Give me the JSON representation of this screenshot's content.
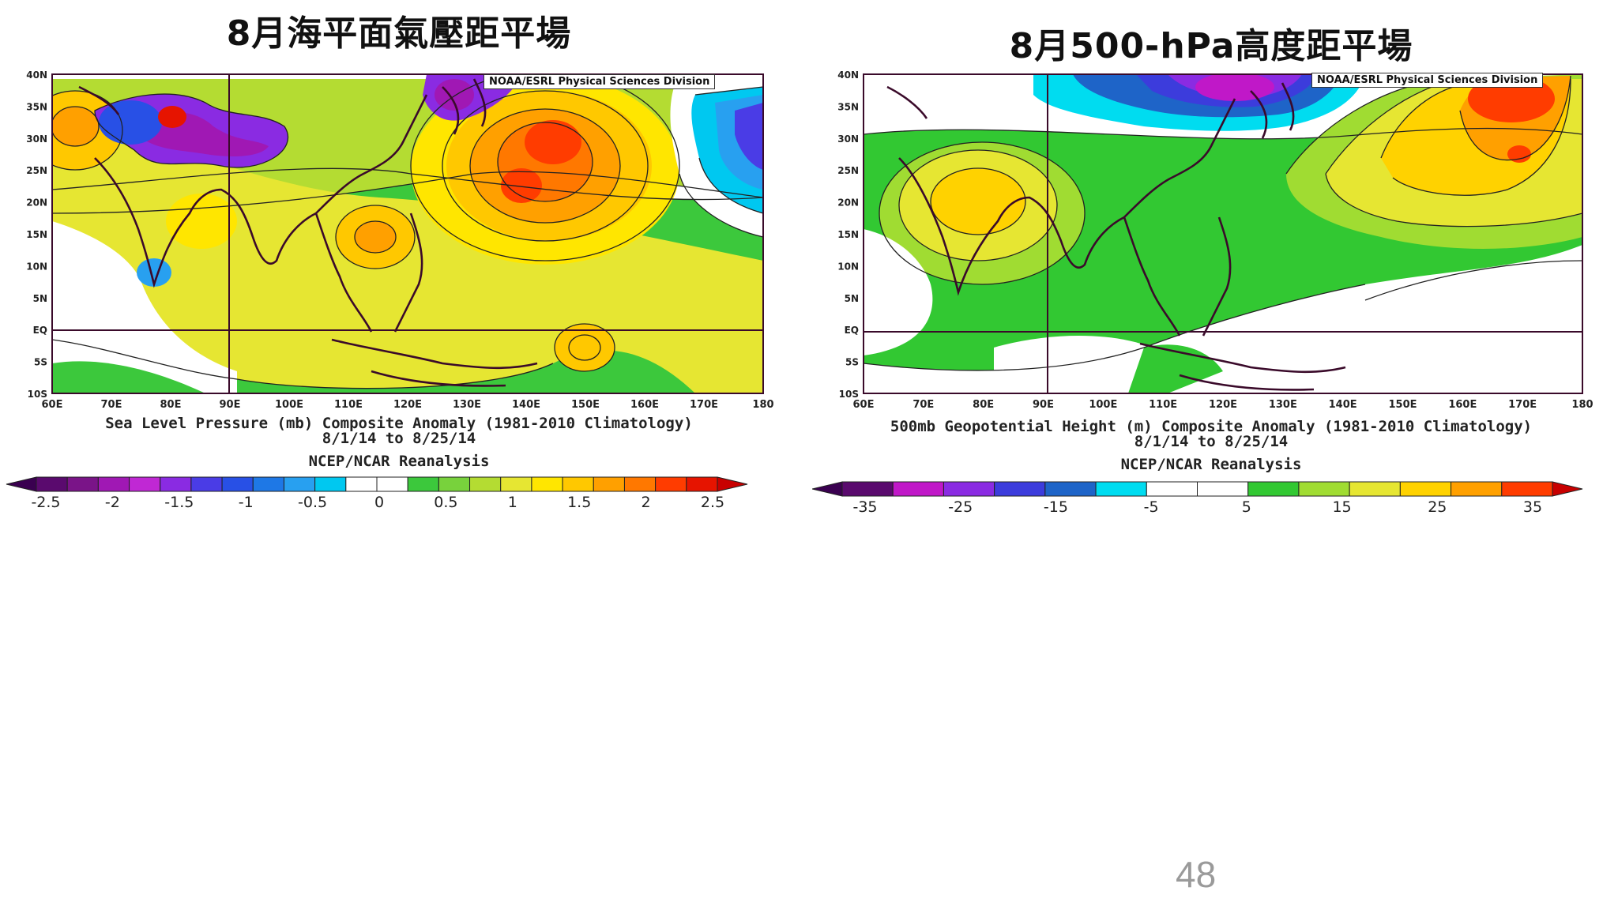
{
  "left": {
    "title": "8月海平面氣壓距平場",
    "credit": "NOAA/ESRL Physical Sciences Division",
    "lat_labels": [
      "40N",
      "35N",
      "30N",
      "25N",
      "20N",
      "15N",
      "10N",
      "5N",
      "EQ",
      "5S",
      "10S"
    ],
    "lon_labels": [
      "60E",
      "70E",
      "80E",
      "90E",
      "100E",
      "110E",
      "120E",
      "130E",
      "140E",
      "150E",
      "160E",
      "170E",
      "180"
    ],
    "caption_line1": "Sea Level Pressure (mb) Composite Anomaly (1981-2010 Climatology)",
    "caption_line2": "8/1/14  to 8/25/14",
    "caption_line3": "NCEP/NCAR Reanalysis",
    "colorbar": {
      "tick_labels": [
        "-2.5",
        "-2",
        "-1.5",
        "-1",
        "-0.5",
        "0",
        "0.5",
        "1",
        "1.5",
        "2",
        "2.5"
      ],
      "colors": [
        "#5a0a6e",
        "#7a1488",
        "#a018b4",
        "#c028d4",
        "#8a2be2",
        "#4a3ce6",
        "#2850e6",
        "#1e78e6",
        "#28a0f0",
        "#00c8f0",
        "#ffffff",
        "#ffffff",
        "#3cc83c",
        "#78d23c",
        "#b4dc32",
        "#e6e632",
        "#ffe600",
        "#ffc800",
        "#ffa000",
        "#ff7800",
        "#ff3c00",
        "#e61400"
      ]
    }
  },
  "right": {
    "title": "8月500-hPa高度距平場",
    "credit": "NOAA/ESRL Physical Sciences Division",
    "lat_labels": [
      "40N",
      "35N",
      "30N",
      "25N",
      "20N",
      "15N",
      "10N",
      "5N",
      "EQ",
      "5S",
      "10S"
    ],
    "lon_labels": [
      "60E",
      "70E",
      "80E",
      "90E",
      "100E",
      "110E",
      "120E",
      "130E",
      "140E",
      "150E",
      "160E",
      "170E",
      "180"
    ],
    "caption_line1": "500mb Geopotential Height (m) Composite Anomaly (1981-2010 Climatology)",
    "caption_line2": "8/1/14  to 8/25/14",
    "caption_line3": "NCEP/NCAR Reanalysis",
    "colorbar": {
      "tick_labels": [
        "-35",
        "-25",
        "-15",
        "-5",
        "5",
        "15",
        "25",
        "35"
      ],
      "colors": [
        "#5a0a6e",
        "#c018c8",
        "#8a2be2",
        "#3c3cdc",
        "#1e64c8",
        "#00dcf0",
        "#ffffff",
        "#ffffff",
        "#32c832",
        "#a0dc32",
        "#e6e632",
        "#ffd200",
        "#ffa000",
        "#ff3c00"
      ]
    }
  },
  "page_number": "48"
}
